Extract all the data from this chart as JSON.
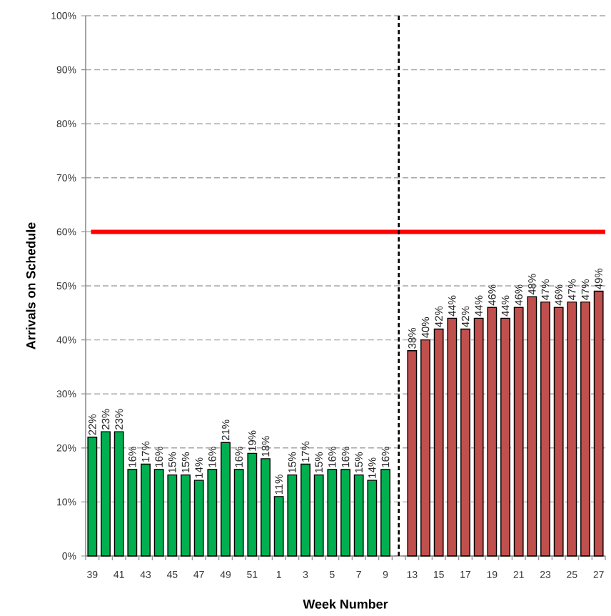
{
  "chart_data": {
    "type": "bar",
    "xlabel": "Week Number",
    "ylabel": "Arrivals on Schedule",
    "categories": [
      "39",
      null,
      "41",
      null,
      "43",
      null,
      "45",
      null,
      "47",
      null,
      "49",
      null,
      "51",
      null,
      "1",
      null,
      "3",
      null,
      "5",
      null,
      "7",
      null,
      "9",
      null,
      "13",
      null,
      "15",
      null,
      "17",
      null,
      "19",
      null,
      "21",
      null,
      "23",
      null,
      "25",
      null,
      "27"
    ],
    "series": [
      {
        "color": "#00b050",
        "values": [
          22,
          23,
          23,
          16,
          17,
          16,
          15,
          15,
          14,
          16,
          21,
          16,
          19,
          18,
          11,
          15,
          17,
          15,
          16,
          16,
          15,
          14,
          16,
          null,
          null,
          null,
          null,
          null,
          null,
          null,
          null,
          null,
          null,
          null,
          null,
          null,
          null,
          null,
          null
        ],
        "value_labels": [
          "22%",
          "23%",
          "23%",
          "16%",
          "17%",
          "16%",
          "15%",
          "15%",
          "14%",
          "16%",
          "21%",
          "16%",
          "19%",
          "18%",
          "11%",
          "15%",
          "17%",
          "15%",
          "16%",
          "16%",
          "15%",
          "14%",
          "16%",
          null,
          null,
          null,
          null,
          null,
          null,
          null,
          null,
          null,
          null,
          null,
          null,
          null,
          null,
          null,
          null
        ]
      },
      {
        "color": "#c0504d",
        "values": [
          null,
          null,
          null,
          null,
          null,
          null,
          null,
          null,
          null,
          null,
          null,
          null,
          null,
          null,
          null,
          null,
          null,
          null,
          null,
          null,
          null,
          null,
          null,
          null,
          38,
          40,
          42,
          44,
          42,
          44,
          46,
          44,
          46,
          48,
          47,
          46,
          47,
          47,
          49
        ],
        "value_labels": [
          null,
          null,
          null,
          null,
          null,
          null,
          null,
          null,
          null,
          null,
          null,
          null,
          null,
          null,
          null,
          null,
          null,
          null,
          null,
          null,
          null,
          null,
          null,
          null,
          "38%",
          "40%",
          "42%",
          "44%",
          "42%",
          "44%",
          "46%",
          "44%",
          "46%",
          "48%",
          "47%",
          "46%",
          "47%",
          "47%",
          "49%"
        ]
      }
    ],
    "ylim": [
      0,
      100
    ],
    "yticks": [
      {
        "value": 0,
        "label": "0%"
      },
      {
        "value": 10,
        "label": "10%"
      },
      {
        "value": 20,
        "label": "20%"
      },
      {
        "value": 30,
        "label": "30%"
      },
      {
        "value": 40,
        "label": "40%"
      },
      {
        "value": 50,
        "label": "50%"
      },
      {
        "value": 60,
        "label": "60%"
      },
      {
        "value": 70,
        "label": "70%"
      },
      {
        "value": 80,
        "label": "80%"
      },
      {
        "value": 90,
        "label": "90%"
      },
      {
        "value": 100,
        "label": "100%"
      }
    ],
    "grid": "y",
    "ref_lines": [
      {
        "axis": "y",
        "value": 60,
        "color": "#ff0000",
        "line_style": "solid"
      }
    ]
  }
}
